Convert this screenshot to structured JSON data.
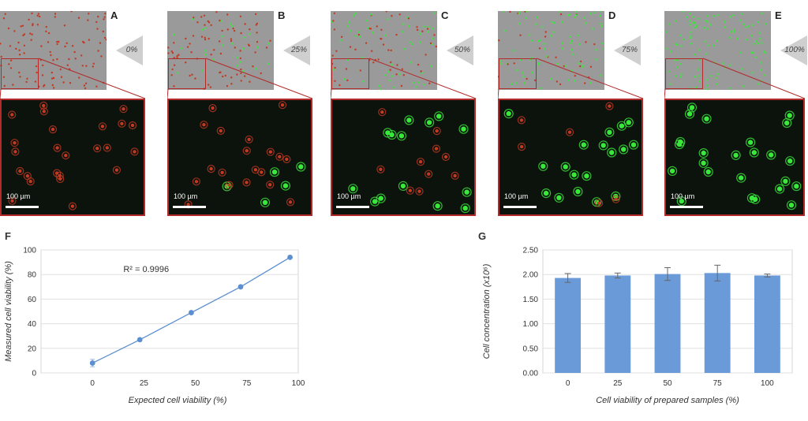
{
  "panels": [
    {
      "letter": "A",
      "viability_label": "0%",
      "scale_label": "100 µm",
      "live_fraction": 0.0
    },
    {
      "letter": "B",
      "viability_label": "25%",
      "scale_label": "100 µm",
      "live_fraction": 0.25
    },
    {
      "letter": "C",
      "viability_label": "50%",
      "scale_label": "100 µm",
      "live_fraction": 0.5
    },
    {
      "letter": "D",
      "viability_label": "75%",
      "scale_label": "100 µm",
      "live_fraction": 0.75
    },
    {
      "letter": "E",
      "viability_label": "100%",
      "scale_label": "100 µm",
      "live_fraction": 1.0
    }
  ],
  "colors": {
    "dead_cell": "#c23a22",
    "live_cell": "#38e83a",
    "inset_border": "#b22a2a",
    "bar_fill": "#6a9bd8",
    "line_color": "#5b8fd0"
  },
  "chart_data": [
    {
      "letter": "F",
      "type": "scatter",
      "xlabel": "Expected cell viability (%)",
      "ylabel": "Measured cell viability (%)",
      "x_ticks": [
        0,
        25,
        50,
        75,
        100
      ],
      "y_ticks": [
        0,
        20,
        40,
        60,
        80,
        100
      ],
      "xlim": [
        -25,
        100
      ],
      "ylim": [
        0,
        100
      ],
      "annotation": "R² = 0.9996",
      "points": [
        {
          "x": 0,
          "y": 8,
          "err": 3
        },
        {
          "x": 23,
          "y": 27,
          "err": 0
        },
        {
          "x": 48,
          "y": 49,
          "err": 0
        },
        {
          "x": 72,
          "y": 70,
          "err": 0
        },
        {
          "x": 96,
          "y": 94,
          "err": 0
        }
      ]
    },
    {
      "letter": "G",
      "type": "bar",
      "xlabel": "Cell viability of prepared samples (%)",
      "ylabel": "Cell concentration (x10⁶)",
      "categories": [
        "0",
        "25",
        "50",
        "75",
        "100"
      ],
      "values": [
        1.93,
        1.98,
        2.01,
        2.03,
        1.98
      ],
      "errors": [
        0.09,
        0.05,
        0.13,
        0.16,
        0.03
      ],
      "y_ticks": [
        "0.00",
        "0.50",
        "1.00",
        "1.50",
        "2.00",
        "2.50"
      ],
      "ylim": [
        0,
        2.5
      ]
    }
  ]
}
